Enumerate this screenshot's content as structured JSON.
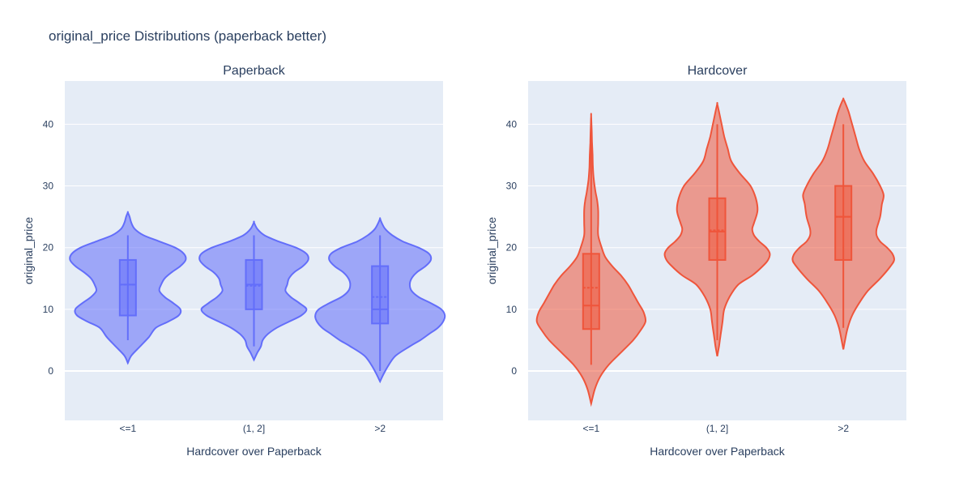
{
  "figure": {
    "title": "original_price Distributions (paperback better)"
  },
  "chart_data": [
    {
      "type": "violin",
      "title": "Paperback",
      "xlabel": "Hardcover over Paperback",
      "ylabel": "original_price",
      "ylim": [
        -8,
        47
      ],
      "yticks": [
        0,
        10,
        20,
        30,
        40
      ],
      "categories": [
        "<=1",
        "(1, 2]",
        ">2"
      ],
      "grid": true,
      "color": "#636efa",
      "fill_color": "rgba(99,110,250,0.55)",
      "series": [
        {
          "category": "<=1",
          "box": {
            "q1": 9,
            "median": 14,
            "q3": 18,
            "mean": 14,
            "whisker_low": 5,
            "whisker_high": 22
          },
          "range": [
            1.3,
            25.7
          ],
          "density": [
            [
              1.3,
              0
            ],
            [
              2.5,
              0.02
            ],
            [
              4,
              0.07
            ],
            [
              5.5,
              0.12
            ],
            [
              7,
              0.16
            ],
            [
              8,
              0.23
            ],
            [
              9,
              0.29
            ],
            [
              10,
              0.3
            ],
            [
              11,
              0.26
            ],
            [
              12,
              0.21
            ],
            [
              13,
              0.18
            ],
            [
              14,
              0.19
            ],
            [
              15,
              0.21
            ],
            [
              16,
              0.25
            ],
            [
              17,
              0.3
            ],
            [
              18,
              0.33
            ],
            [
              19,
              0.32
            ],
            [
              20,
              0.27
            ],
            [
              21,
              0.18
            ],
            [
              22,
              0.09
            ],
            [
              23,
              0.04
            ],
            [
              24,
              0.02
            ],
            [
              25,
              0.01
            ],
            [
              25.7,
              0
            ]
          ]
        },
        {
          "category": "(1, 2]",
          "box": {
            "q1": 10,
            "median": 14,
            "q3": 18,
            "mean": 13.8,
            "whisker_low": 4,
            "whisker_high": 22
          },
          "range": [
            1.8,
            24.1
          ],
          "density": [
            [
              1.8,
              0
            ],
            [
              3,
              0.02
            ],
            [
              4,
              0.04
            ],
            [
              5,
              0.05
            ],
            [
              6,
              0.08
            ],
            [
              7,
              0.13
            ],
            [
              8,
              0.2
            ],
            [
              9,
              0.27
            ],
            [
              10,
              0.3
            ],
            [
              11,
              0.26
            ],
            [
              12,
              0.21
            ],
            [
              13,
              0.18
            ],
            [
              14,
              0.19
            ],
            [
              15,
              0.2
            ],
            [
              16,
              0.23
            ],
            [
              17,
              0.28
            ],
            [
              18,
              0.31
            ],
            [
              19,
              0.3
            ],
            [
              20,
              0.24
            ],
            [
              21,
              0.14
            ],
            [
              22,
              0.06
            ],
            [
              23,
              0.02
            ],
            [
              24.1,
              0
            ]
          ]
        },
        {
          "category": ">2",
          "box": {
            "q1": 7.7,
            "median": 10,
            "q3": 17,
            "mean": 12,
            "whisker_low": 0,
            "whisker_high": 22
          },
          "range": [
            -1.7,
            24.7
          ],
          "density": [
            [
              -1.7,
              0
            ],
            [
              -0.5,
              0.02
            ],
            [
              1,
              0.05
            ],
            [
              2.5,
              0.09
            ],
            [
              4,
              0.17
            ],
            [
              5,
              0.23
            ],
            [
              6,
              0.28
            ],
            [
              7,
              0.33
            ],
            [
              8,
              0.36
            ],
            [
              9,
              0.37
            ],
            [
              10,
              0.35
            ],
            [
              11,
              0.29
            ],
            [
              12,
              0.22
            ],
            [
              13,
              0.18
            ],
            [
              14,
              0.17
            ],
            [
              15,
              0.18
            ],
            [
              16,
              0.21
            ],
            [
              17,
              0.26
            ],
            [
              18,
              0.29
            ],
            [
              19,
              0.28
            ],
            [
              20,
              0.22
            ],
            [
              21,
              0.13
            ],
            [
              22,
              0.07
            ],
            [
              23,
              0.03
            ],
            [
              24,
              0.01
            ],
            [
              24.7,
              0
            ]
          ]
        }
      ]
    },
    {
      "type": "violin",
      "title": "Hardcover",
      "xlabel": "Hardcover over Paperback",
      "ylabel": "original_price",
      "ylim": [
        -8,
        47
      ],
      "yticks": [
        0,
        10,
        20,
        30,
        40
      ],
      "categories": [
        "<=1",
        "(1, 2]",
        ">2"
      ],
      "grid": true,
      "color": "#ef553b",
      "fill_color": "rgba(239,85,59,0.55)",
      "series": [
        {
          "category": "<=1",
          "box": {
            "q1": 6.8,
            "median": 10.6,
            "q3": 19,
            "mean": 13.5,
            "whisker_low": 1,
            "whisker_high": 41
          },
          "range": [
            -5.3,
            41.4
          ],
          "density": [
            [
              -5.3,
              0
            ],
            [
              -3,
              0.02
            ],
            [
              -1,
              0.05
            ],
            [
              1,
              0.1
            ],
            [
              3,
              0.17
            ],
            [
              5,
              0.24
            ],
            [
              6.5,
              0.28
            ],
            [
              8,
              0.31
            ],
            [
              9.5,
              0.3
            ],
            [
              11,
              0.27
            ],
            [
              12.5,
              0.24
            ],
            [
              14,
              0.21
            ],
            [
              15.5,
              0.17
            ],
            [
              17,
              0.12
            ],
            [
              18.5,
              0.08
            ],
            [
              20,
              0.06
            ],
            [
              22,
              0.04
            ],
            [
              24,
              0.04
            ],
            [
              26,
              0.04
            ],
            [
              27.5,
              0.035
            ],
            [
              29,
              0.025
            ],
            [
              31,
              0.015
            ],
            [
              33,
              0.01
            ],
            [
              35,
              0.008
            ],
            [
              37,
              0.005
            ],
            [
              39,
              0.003
            ],
            [
              41.4,
              0
            ]
          ]
        },
        {
          "category": "(1, 2]",
          "box": {
            "q1": 18,
            "median": 22.6,
            "q3": 28,
            "mean": 22.8,
            "whisker_low": 5,
            "whisker_high": 40
          },
          "range": [
            2.4,
            43.3
          ],
          "density": [
            [
              2.4,
              0
            ],
            [
              4,
              0.01
            ],
            [
              5,
              0.015
            ],
            [
              6,
              0.02
            ],
            [
              8,
              0.03
            ],
            [
              10,
              0.04
            ],
            [
              12,
              0.07
            ],
            [
              14,
              0.12
            ],
            [
              15.5,
              0.2
            ],
            [
              17,
              0.26
            ],
            [
              18,
              0.29
            ],
            [
              19,
              0.3
            ],
            [
              20,
              0.28
            ],
            [
              21,
              0.24
            ],
            [
              22,
              0.21
            ],
            [
              23,
              0.2
            ],
            [
              24,
              0.21
            ],
            [
              26,
              0.23
            ],
            [
              28,
              0.22
            ],
            [
              30,
              0.19
            ],
            [
              32,
              0.13
            ],
            [
              34,
              0.08
            ],
            [
              36,
              0.06
            ],
            [
              38,
              0.04
            ],
            [
              40,
              0.025
            ],
            [
              42,
              0.01
            ],
            [
              43.3,
              0
            ]
          ]
        },
        {
          "category": ">2",
          "box": {
            "q1": 18,
            "median": 25,
            "q3": 30,
            "mean": 25,
            "whisker_low": 7,
            "whisker_high": 40
          },
          "range": [
            3.5,
            44.1
          ],
          "density": [
            [
              3.5,
              0
            ],
            [
              5,
              0.01
            ],
            [
              7,
              0.025
            ],
            [
              9,
              0.05
            ],
            [
              11,
              0.09
            ],
            [
              13,
              0.14
            ],
            [
              15,
              0.21
            ],
            [
              17,
              0.27
            ],
            [
              18,
              0.29
            ],
            [
              19,
              0.28
            ],
            [
              20,
              0.25
            ],
            [
              21,
              0.21
            ],
            [
              22,
              0.19
            ],
            [
              23,
              0.19
            ],
            [
              25,
              0.21
            ],
            [
              27,
              0.22
            ],
            [
              28.5,
              0.23
            ],
            [
              30,
              0.21
            ],
            [
              32,
              0.17
            ],
            [
              34,
              0.12
            ],
            [
              36,
              0.09
            ],
            [
              38,
              0.07
            ],
            [
              40,
              0.05
            ],
            [
              42,
              0.03
            ],
            [
              43.5,
              0.01
            ],
            [
              44.1,
              0
            ]
          ]
        }
      ]
    }
  ]
}
